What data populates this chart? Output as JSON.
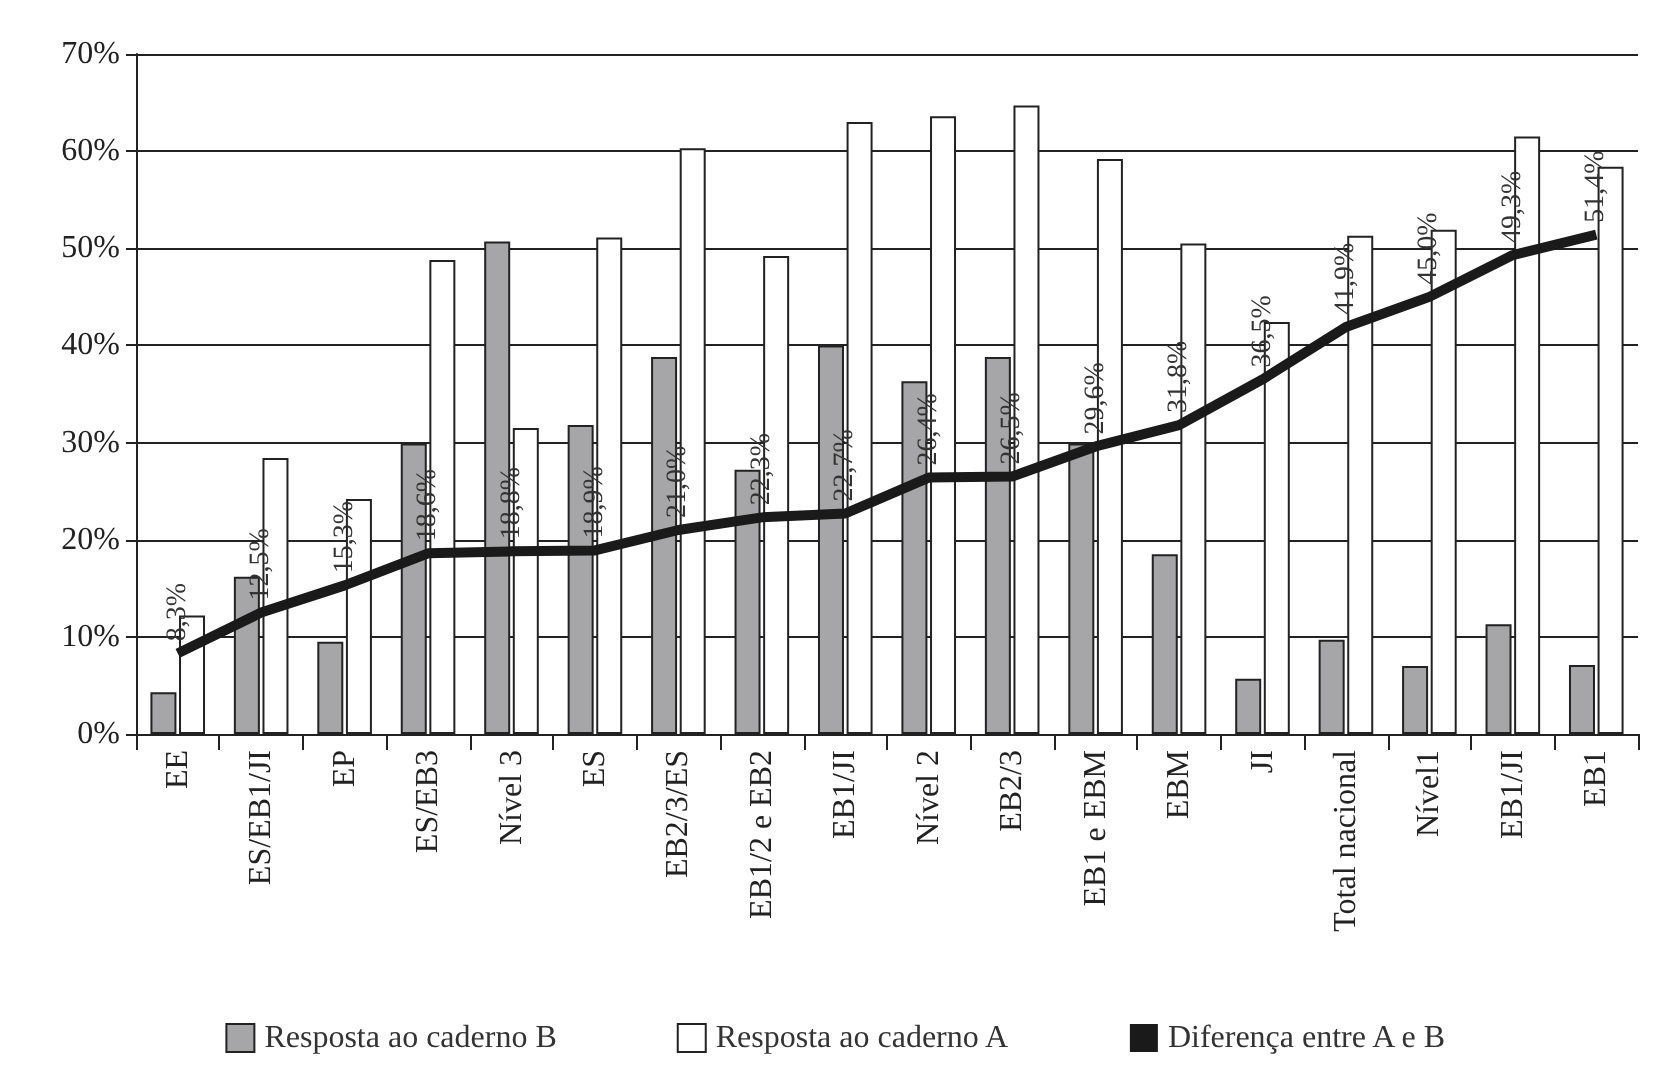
{
  "chart_data": {
    "type": "bar",
    "categories": [
      "EE",
      "ES/EB1/JI",
      "EP",
      "ES/EB3",
      "Nível 3",
      "ES",
      "EB2/3/ES",
      "EB1/2 e EB2",
      "EB1/JI",
      "Nível 2",
      "EB2/3",
      "EB1 e EBM",
      "EBM",
      "JI",
      "Total nacional",
      "Nível1",
      "EB1/JI",
      "EB1"
    ],
    "series": [
      {
        "name": "Resposta ao caderno B",
        "color": "#a6a6a8",
        "values": [
          4.3,
          16.2,
          9.5,
          29.9,
          50.7,
          31.8,
          38.8,
          27.2,
          40.0,
          36.3,
          38.8,
          29.9,
          18.5,
          5.7,
          9.7,
          7.0,
          11.3,
          7.1
        ]
      },
      {
        "name": "Resposta ao caderno A",
        "color": "#ffffff",
        "values": [
          12.2,
          28.4,
          24.2,
          48.8,
          31.5,
          51.1,
          60.3,
          49.2,
          63.0,
          63.6,
          64.7,
          59.2,
          50.5,
          42.4,
          51.3,
          51.9,
          61.5,
          58.4
        ]
      },
      {
        "name": "Diferença entre A e B",
        "type": "line",
        "color": "#1a1a1a",
        "values": [
          8.3,
          12.5,
          15.3,
          18.6,
          18.8,
          18.9,
          21.0,
          22.3,
          22.7,
          26.4,
          26.5,
          29.6,
          31.8,
          36.5,
          41.9,
          45.0,
          49.3,
          51.4
        ],
        "value_labels": [
          "8,3%",
          "12,5%",
          "15,3%",
          "18,6%",
          "18,8%",
          "18,9%",
          "21,0%",
          "22,3%",
          "22,7%",
          "26,4%",
          "26,5%",
          "29,6%",
          "31,8%",
          "36,5%",
          "41,9%",
          "45,0%",
          "49,3%",
          "51,4%"
        ]
      }
    ],
    "ylim": [
      0,
      70
    ],
    "yticks": [
      {
        "value": 0,
        "label": "0%"
      },
      {
        "value": 10,
        "label": "10%"
      },
      {
        "value": 20,
        "label": "20%"
      },
      {
        "value": 30,
        "label": "30%"
      },
      {
        "value": 40,
        "label": "40%"
      },
      {
        "value": 50,
        "label": "50%"
      },
      {
        "value": 60,
        "label": "60%"
      },
      {
        "value": 70,
        "label": "70%"
      }
    ],
    "grid": "y",
    "legend": "bottom",
    "marker": "none"
  }
}
